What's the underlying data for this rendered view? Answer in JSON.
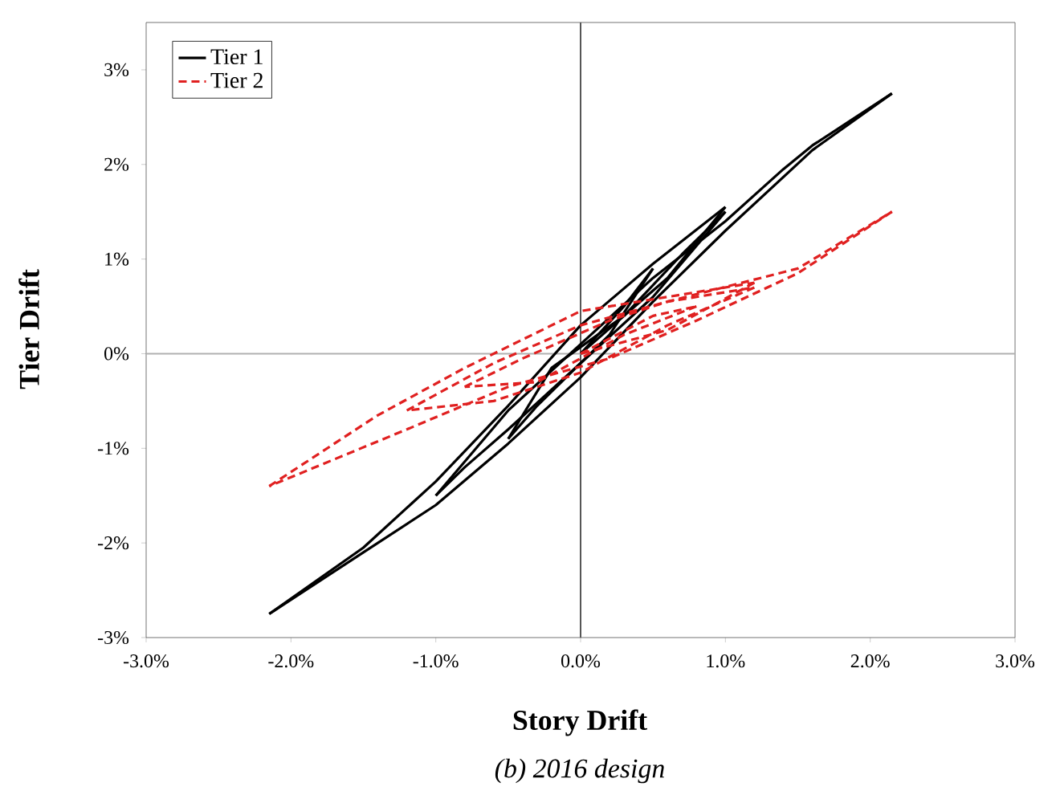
{
  "chart_data": {
    "type": "line",
    "xlabel": "Story Drift",
    "ylabel": "Tier Drift",
    "annotations": [
      "(b) 2016 design"
    ],
    "xlim": [
      -3,
      3
    ],
    "ylim": [
      -3,
      3.5
    ],
    "xticks": [
      {
        "value": -3,
        "label": "-3.0%"
      },
      {
        "value": -2,
        "label": "-2.0%"
      },
      {
        "value": -1,
        "label": "-1.0%"
      },
      {
        "value": 0,
        "label": "0.0%"
      },
      {
        "value": 1,
        "label": "1.0%"
      },
      {
        "value": 2,
        "label": "2.0%"
      },
      {
        "value": 3,
        "label": "3.0%"
      }
    ],
    "yticks": [
      {
        "value": -3,
        "label": "-3%"
      },
      {
        "value": -2,
        "label": "-2%"
      },
      {
        "value": -1,
        "label": "-1%"
      },
      {
        "value": 0,
        "label": "0%"
      },
      {
        "value": 1,
        "label": "1%"
      },
      {
        "value": 2,
        "label": "2%"
      },
      {
        "value": 3,
        "label": "3%"
      }
    ],
    "grid": false,
    "legend": "top left",
    "ref_lines": [
      {
        "axis": "x",
        "value": 0,
        "color": "#555555"
      },
      {
        "axis": "y",
        "value": 0,
        "color": "#b0b0b0"
      }
    ],
    "series": [
      {
        "name": "Tier 1",
        "color": "#000000",
        "line_style": "solid",
        "x": [
          0,
          0.3,
          0.5
        ],
        "values": [
          0,
          0.5,
          0.9
        ]
      },
      {
        "color": "#000000",
        "line_style": "solid",
        "x": [
          0.5,
          0.2,
          -0.3,
          -0.5
        ],
        "values": [
          0.9,
          0.2,
          -0.55,
          -0.9
        ]
      },
      {
        "color": "#000000",
        "line_style": "solid",
        "x": [
          -0.5,
          -0.2,
          0.3,
          0.7,
          1.0
        ],
        "values": [
          -0.9,
          -0.15,
          0.4,
          1.05,
          1.5
        ]
      },
      {
        "color": "#000000",
        "line_style": "solid",
        "x": [
          1.0,
          0.5,
          0,
          -0.5,
          -0.8,
          -1.0
        ],
        "values": [
          1.5,
          0.6,
          -0.1,
          -0.8,
          -1.2,
          -1.5
        ]
      },
      {
        "color": "#000000",
        "line_style": "solid",
        "x": [
          -1.0,
          -0.5,
          0,
          0.5,
          1.0,
          1.4,
          1.6,
          2.15
        ],
        "values": [
          -1.5,
          -0.6,
          0.1,
          0.8,
          1.4,
          1.95,
          2.2,
          2.75
        ]
      },
      {
        "color": "#000000",
        "line_style": "solid",
        "x": [
          2.15,
          1.6,
          1.0,
          0.5,
          0,
          -0.5,
          -1.0,
          -1.5,
          -2.15
        ],
        "values": [
          2.75,
          2.15,
          1.3,
          0.55,
          -0.25,
          -0.95,
          -1.6,
          -2.1,
          -2.75
        ]
      },
      {
        "color": "#000000",
        "line_style": "solid",
        "x": [
          -2.15,
          -1.5,
          -1.0,
          -0.5,
          0,
          0.5,
          1.0
        ],
        "values": [
          -2.75,
          -2.05,
          -1.35,
          -0.55,
          0.3,
          0.95,
          1.55
        ]
      },
      {
        "color": "#000000",
        "line_style": "solid",
        "x": [
          1.0,
          0.6,
          0
        ],
        "values": [
          1.55,
          0.8,
          0
        ]
      },
      {
        "name": "Tier 2",
        "color": "#e02020",
        "line_style": "dashed",
        "x": [
          0,
          0.5,
          0.8
        ],
        "values": [
          0,
          0.4,
          0.5
        ]
      },
      {
        "color": "#e02020",
        "line_style": "dashed",
        "x": [
          0.8,
          0.3,
          -0.3,
          -0.8
        ],
        "values": [
          0.5,
          0.2,
          -0.3,
          -0.35
        ]
      },
      {
        "color": "#e02020",
        "line_style": "dashed",
        "x": [
          -0.8,
          -0.4,
          0.2,
          0.6,
          1.2
        ],
        "values": [
          -0.35,
          -0.05,
          0.35,
          0.55,
          0.7
        ]
      },
      {
        "color": "#e02020",
        "line_style": "dashed",
        "x": [
          1.2,
          0.6,
          0,
          -0.6,
          -1.2
        ],
        "values": [
          0.7,
          0.3,
          -0.2,
          -0.5,
          -0.6
        ]
      },
      {
        "color": "#e02020",
        "line_style": "dashed",
        "x": [
          -1.2,
          -0.6,
          0,
          0.6,
          1.5,
          2.15
        ],
        "values": [
          -0.6,
          -0.1,
          0.3,
          0.55,
          0.9,
          1.5
        ]
      },
      {
        "color": "#e02020",
        "line_style": "dashed",
        "x": [
          2.15,
          1.5,
          0.8,
          0.2,
          -0.5,
          -1.2,
          -2.15
        ],
        "values": [
          1.5,
          0.85,
          0.35,
          -0.05,
          -0.35,
          -0.8,
          -1.4
        ]
      },
      {
        "color": "#e02020",
        "line_style": "dashed",
        "x": [
          -2.15,
          -1.4,
          -0.8,
          0,
          0.6,
          1.2
        ],
        "values": [
          -1.4,
          -0.65,
          -0.15,
          0.45,
          0.6,
          0.75
        ]
      },
      {
        "color": "#e02020",
        "line_style": "dashed",
        "x": [
          1.2,
          0.6,
          0
        ],
        "values": [
          0.75,
          0.25,
          0
        ]
      }
    ]
  }
}
